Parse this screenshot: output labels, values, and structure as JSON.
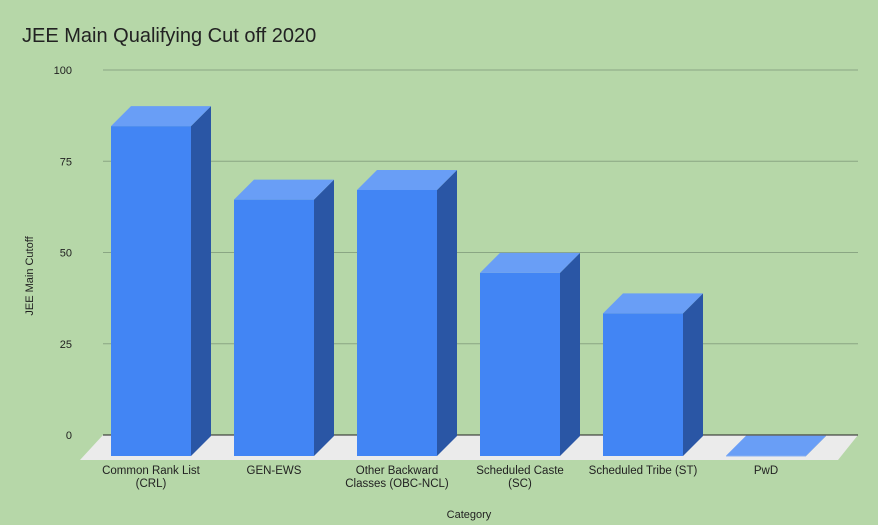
{
  "chart_data": {
    "type": "bar",
    "title": "JEE Main Qualifying Cut off 2020",
    "xlabel": "Category",
    "ylabel": "JEE Main Cutoff",
    "categories": [
      [
        "Common Rank List",
        "(CRL)"
      ],
      [
        "GEN-EWS"
      ],
      [
        "Other Backward",
        "Classes (OBC-NCL)"
      ],
      [
        "Scheduled Caste",
        "(SC)"
      ],
      [
        "Scheduled Tribe (ST)"
      ],
      [
        "PwD"
      ]
    ],
    "values": [
      90.38,
      70.24,
      72.89,
      50.18,
      39.07,
      0.06
    ],
    "ylim": [
      0,
      100
    ],
    "yticks": [
      0,
      25,
      50,
      75,
      100
    ],
    "grid": true,
    "style": "3d",
    "colors": {
      "front": "#4285f4",
      "side": "#2a56a5",
      "top": "#699ef6",
      "floor": "#ebebeb",
      "grid": "#8aa683"
    }
  }
}
